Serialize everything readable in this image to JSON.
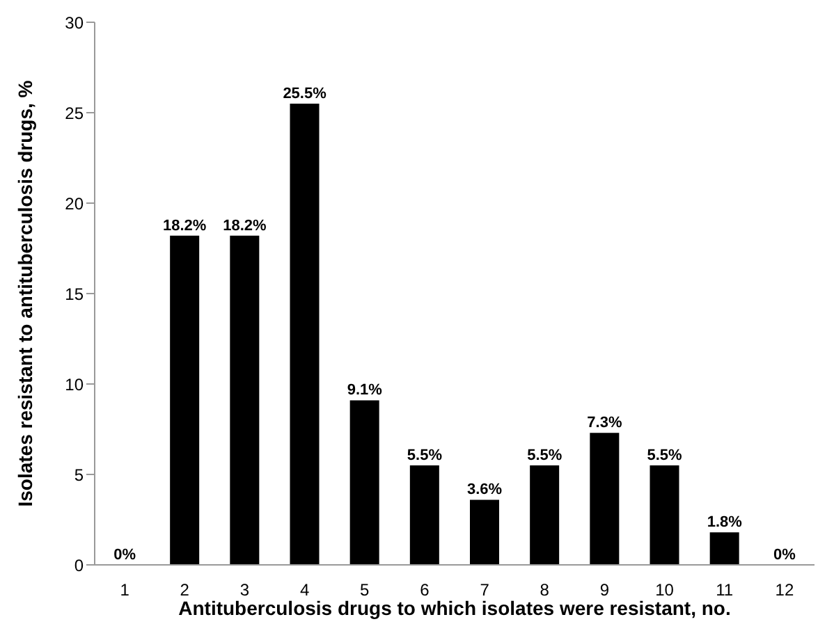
{
  "chart_data": {
    "type": "bar",
    "xlabel": "Antituberculosis drugs to which isolates were resistant, no.",
    "ylabel": "Isolates resistant to antituberculosis drugs, %",
    "categories": [
      "1",
      "2",
      "3",
      "4",
      "5",
      "6",
      "7",
      "8",
      "9",
      "10",
      "11",
      "12"
    ],
    "values": [
      0,
      18.2,
      18.2,
      25.5,
      9.1,
      5.5,
      3.6,
      5.5,
      7.3,
      5.5,
      1.8,
      0
    ],
    "value_labels": [
      "0%",
      "18.2%",
      "18.2%",
      "25.5%",
      "9.1%",
      "5.5%",
      "3.6%",
      "5.5%",
      "7.3%",
      "5.5%",
      "1.8%",
      "0%"
    ],
    "color": "#000000",
    "ylim": [
      0,
      30
    ],
    "yticks": [
      0,
      5,
      10,
      15,
      20,
      25,
      30
    ],
    "grid": false,
    "legend": false
  }
}
